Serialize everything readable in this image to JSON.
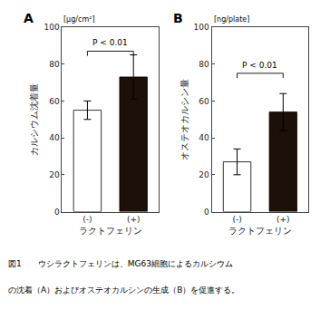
{
  "chart_data": [
    {
      "type": "bar",
      "title": "A",
      "categories": [
        "(-)",
        "(+)"
      ],
      "values": [
        55,
        73
      ],
      "errors": [
        5,
        12
      ],
      "colors": [
        "white",
        "#1c1008"
      ],
      "xlabel": "ラクトフェリン",
      "ylabel": "カルシウム沈着量",
      "ylim": [
        0,
        100
      ],
      "yticks": [
        0,
        20,
        40,
        60,
        80,
        100
      ],
      "grid": false,
      "annotations": [
        {
          "text": "[μg/cm²]"
        },
        {
          "text": "P < 0.01",
          "y": 88,
          "bracket_y": 87
        }
      ]
    },
    {
      "type": "bar",
      "title": "B",
      "categories": [
        "(-)",
        "(+)"
      ],
      "values": [
        27,
        54
      ],
      "errors": [
        7,
        10
      ],
      "colors": [
        "white",
        "#1c1008"
      ],
      "xlabel": "ラクトフェリン",
      "ylabel": "オステオカルシン量",
      "ylim": [
        0,
        100
      ],
      "yticks": [
        0,
        20,
        40,
        60,
        80,
        100
      ],
      "grid": false,
      "annotations": [
        {
          "text": "[ng/plate]"
        },
        {
          "text": "P < 0.01",
          "y": 76,
          "bracket_y": 75
        }
      ]
    }
  ],
  "annotations": [
    "図1　　ウシラクトフェリンは、MG63細胞によるカルシウム",
    "の沈着（A）およびオステオカルシンの生成（B）を促進する。"
  ]
}
